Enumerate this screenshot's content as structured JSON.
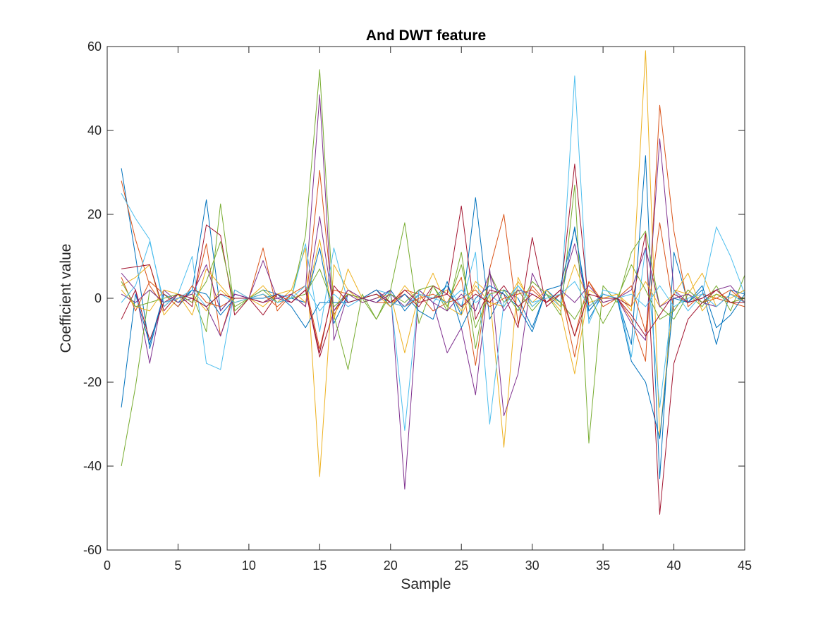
{
  "chart_data": {
    "type": "line",
    "title": "And DWT feature",
    "xlabel": "Sample",
    "ylabel": "Coefficient value",
    "xlim": [
      0,
      45
    ],
    "ylim": [
      -60,
      60
    ],
    "xticks": [
      0,
      5,
      10,
      15,
      20,
      25,
      30,
      35,
      40,
      45
    ],
    "yticks": [
      -60,
      -40,
      -20,
      0,
      20,
      40,
      60
    ],
    "grid": false,
    "legend": "none",
    "box": true,
    "x": [
      1,
      2,
      3,
      4,
      5,
      6,
      7,
      8,
      9,
      10,
      11,
      12,
      13,
      14,
      15,
      16,
      17,
      18,
      19,
      20,
      21,
      22,
      23,
      24,
      25,
      26,
      27,
      28,
      29,
      30,
      31,
      32,
      33,
      34,
      35,
      36,
      37,
      38,
      39,
      40,
      41,
      42,
      43,
      44,
      45
    ],
    "series": [
      {
        "color": "#0072bd",
        "values": [
          31,
          10,
          -12,
          1,
          -1,
          2,
          23.5,
          -3,
          1,
          0,
          2,
          1,
          0,
          -1,
          12,
          -6,
          1,
          0,
          -1,
          2,
          -3,
          1,
          0,
          3,
          -4,
          24,
          -5,
          2,
          0,
          -7,
          2,
          -1,
          17,
          -5,
          1,
          0,
          -11,
          34,
          -43,
          11,
          -1,
          2,
          -11,
          2,
          1
        ]
      },
      {
        "color": "#d95319",
        "values": [
          28,
          14,
          3,
          -2,
          1,
          -1,
          13,
          -9,
          2,
          0,
          12,
          -3,
          1,
          -2,
          30.5,
          -4,
          2,
          0,
          1,
          -2,
          2,
          1,
          -3,
          -1,
          5,
          -16,
          7,
          20,
          -6,
          3,
          -1,
          2,
          -14,
          4,
          -2,
          0,
          -5,
          -15,
          46,
          16,
          -2,
          1,
          0,
          -1,
          -2
        ]
      },
      {
        "color": "#edb120",
        "values": [
          3,
          5,
          8,
          -4,
          0,
          1,
          -3,
          2,
          -1,
          0,
          3,
          -1,
          2,
          12,
          -42.5,
          8,
          2,
          -1,
          0,
          1,
          -13,
          1,
          0,
          2,
          -3,
          4,
          1,
          -35.5,
          5,
          -2,
          1,
          -3,
          -18,
          2,
          0,
          1,
          -3,
          59,
          -33,
          2,
          1,
          6,
          -2,
          1,
          0
        ]
      },
      {
        "color": "#7e2f8e",
        "values": [
          6,
          2,
          -15.5,
          2,
          -1,
          0,
          -2,
          -9,
          1,
          0,
          9,
          0,
          -1,
          2,
          48.5,
          -10,
          1,
          -1,
          0,
          2,
          -45.5,
          2,
          -1,
          -13,
          -7,
          -23,
          7,
          -28,
          -18,
          6,
          -1,
          2,
          13,
          -3,
          1,
          0,
          -6,
          -10,
          38,
          2,
          -1,
          0,
          2,
          3,
          -1
        ]
      },
      {
        "color": "#77ac30",
        "values": [
          -40,
          -21,
          2,
          -1,
          0,
          1,
          -8,
          22.5,
          -3,
          0,
          1,
          -1,
          0,
          15,
          54.5,
          -4,
          -17,
          1,
          -5,
          2,
          18,
          -6,
          3,
          -3,
          11,
          -12,
          6,
          -1,
          2,
          -3,
          1,
          -4,
          27,
          -34.5,
          3,
          -1,
          11,
          16,
          -2,
          -5,
          1,
          -2,
          3,
          -3,
          5.5
        ]
      },
      {
        "color": "#4dbeee",
        "values": [
          25,
          19,
          14,
          -2,
          1,
          10,
          -15.5,
          -17,
          2,
          0,
          -1,
          1,
          0,
          13,
          -8,
          12,
          -1,
          0,
          2,
          1,
          -31.5,
          2,
          -1,
          3,
          -2,
          11,
          -30,
          -1,
          3,
          -2,
          1,
          -2,
          53,
          -6,
          2,
          1,
          -14,
          12,
          -26,
          2,
          -3,
          1,
          17,
          10,
          1
        ]
      },
      {
        "color": "#a2142f",
        "values": [
          -5,
          2,
          -10,
          -1,
          1,
          -2,
          17.5,
          15,
          -4,
          0,
          -4,
          1,
          -1,
          2,
          -14,
          -3,
          1,
          0,
          2,
          -1,
          1,
          -2,
          3,
          1,
          22,
          -5,
          2,
          1,
          -7,
          14.5,
          -2,
          1,
          32,
          -2,
          1,
          0,
          -2,
          15.5,
          -51.5,
          -15.5,
          -5,
          -1,
          2,
          -1,
          0
        ]
      },
      {
        "color": "#0072bd",
        "values": [
          -26,
          1,
          -11,
          1,
          -2,
          2,
          1,
          -4,
          0,
          0,
          0,
          1,
          -2,
          -7,
          -1,
          -1,
          -1,
          0,
          2,
          -2,
          1,
          -3,
          -5,
          4,
          -7,
          0,
          3,
          1,
          -2,
          -8,
          2,
          3,
          16.5,
          -3,
          1,
          0,
          -15,
          -20,
          -33.5,
          0,
          -1,
          3,
          -7,
          -4,
          1
        ]
      },
      {
        "color": "#d95319",
        "values": [
          5,
          -3,
          4,
          1,
          -2,
          3,
          -1,
          -2,
          0,
          0,
          1,
          -2,
          1,
          3,
          -12,
          2,
          1,
          0,
          -1,
          -1,
          -2,
          0,
          1,
          -1,
          0,
          2,
          -2,
          0,
          1,
          2,
          -1,
          1,
          -9,
          4,
          -1,
          0,
          3,
          -8,
          18,
          -3,
          2,
          -1,
          0,
          2,
          -1
        ]
      },
      {
        "color": "#edb120",
        "values": [
          2,
          -2,
          -3,
          2,
          1,
          -4,
          7,
          3,
          -1,
          0,
          -2,
          1,
          2,
          -1,
          14,
          -5,
          7,
          0,
          1,
          -2,
          3,
          -1,
          6,
          -2,
          -4,
          3,
          -1,
          -2,
          4,
          -1,
          2,
          -2,
          8,
          -1,
          0,
          1,
          -2,
          4,
          -2,
          1,
          6,
          -3,
          1,
          0,
          2
        ]
      },
      {
        "color": "#7e2f8e",
        "values": [
          1,
          -1,
          2,
          -1,
          0,
          1,
          8,
          -3,
          1,
          0,
          -1,
          0,
          1,
          -2,
          19.5,
          -3,
          2,
          0,
          -1,
          1,
          -2,
          2,
          -1,
          -3,
          1,
          -3,
          6,
          -3,
          2,
          1,
          -1,
          2,
          -1,
          3,
          -1,
          0,
          2,
          12,
          -2,
          0,
          1,
          -1,
          -2,
          1,
          -1
        ]
      },
      {
        "color": "#77ac30",
        "values": [
          4,
          -2,
          -1,
          0,
          1,
          -1,
          4,
          13.5,
          -2,
          0,
          2,
          -1,
          0,
          1,
          7,
          -2,
          1,
          0,
          -5,
          1,
          -1,
          2,
          3,
          -2,
          8,
          -7,
          1,
          2,
          -3,
          4,
          1,
          -1,
          -5,
          1,
          -6,
          0,
          8,
          2,
          -5,
          -3,
          2,
          -1,
          1,
          -1,
          0
        ]
      },
      {
        "color": "#4dbeee",
        "values": [
          -1,
          3,
          13.5,
          -1,
          0,
          2,
          -2,
          1,
          -1,
          0,
          1,
          -1,
          0,
          3,
          -3,
          1,
          -2,
          0,
          1,
          -1,
          -2,
          1,
          0,
          -1,
          2,
          -1,
          1,
          -2,
          3,
          -1,
          0,
          1,
          4,
          -2,
          1,
          0,
          1,
          -2,
          3,
          -2,
          0,
          1,
          -2,
          1,
          -1
        ]
      },
      {
        "color": "#a2142f",
        "values": [
          7,
          7.5,
          8,
          -3,
          1,
          0,
          -2,
          1,
          0,
          0,
          -1,
          1,
          -1,
          2,
          -13,
          3,
          -1,
          0,
          1,
          -1,
          2,
          -1,
          0,
          1,
          -2,
          1,
          -1,
          3,
          -2,
          1,
          -1,
          2,
          -9,
          1,
          0,
          0,
          -4,
          -9,
          -4,
          1,
          -1,
          0,
          2,
          -1,
          -1
        ]
      }
    ]
  }
}
